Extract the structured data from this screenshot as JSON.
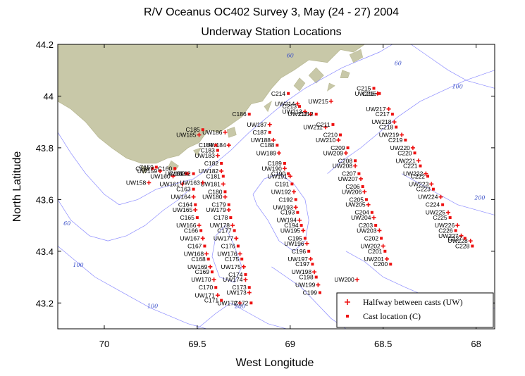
{
  "chart_data": {
    "type": "scatter",
    "title": "R/V Oceanus OC402 Survey 3, May (24 - 27) 2004",
    "subtitle": "Underway Station Locations",
    "xlabel": "West Longitude",
    "ylabel": "North Latitude",
    "xlim": [
      70.25,
      67.9
    ],
    "ylim": [
      43.1,
      44.2
    ],
    "x_reversed": true,
    "xticks": [
      70,
      69.5,
      69,
      68.5,
      68
    ],
    "yticks": [
      43.2,
      43.4,
      43.6,
      43.8,
      44,
      44.2
    ],
    "land_color": "#c8c8a8",
    "contour_color": "#8c8cff",
    "marker_color": "#ee1111",
    "contour_labels": [
      {
        "text": "60",
        "lon": 69.0,
        "lat": 44.15
      },
      {
        "text": "60",
        "lon": 68.42,
        "lat": 44.12
      },
      {
        "text": "100",
        "lon": 68.1,
        "lat": 44.03
      },
      {
        "text": "60",
        "lon": 70.2,
        "lat": 43.5
      },
      {
        "text": "100",
        "lon": 70.14,
        "lat": 43.34
      },
      {
        "text": "100",
        "lon": 69.74,
        "lat": 43.18
      },
      {
        "text": "200",
        "lon": 69.27,
        "lat": 43.18
      },
      {
        "text": "200",
        "lon": 67.98,
        "lat": 43.6
      }
    ],
    "legend": {
      "items": [
        {
          "marker": "+",
          "label": "Halfway between casts (UW)"
        },
        {
          "marker": "■",
          "label": "Cast location (C)"
        }
      ]
    },
    "series": [
      {
        "name": "Halfway between casts (UW)",
        "marker": "plus",
        "points": [
          {
            "label": "UW158",
            "lon": 69.76,
            "lat": 43.665
          },
          {
            "label": "UW159",
            "lon": 69.7,
            "lat": 43.71
          },
          {
            "label": "UW160",
            "lon": 69.63,
            "lat": 43.69
          },
          {
            "label": "UW161",
            "lon": 69.58,
            "lat": 43.66
          },
          {
            "label": "UW162",
            "lon": 69.55,
            "lat": 43.7
          },
          {
            "label": "UW163",
            "lon": 69.47,
            "lat": 43.665
          },
          {
            "label": "UW164",
            "lon": 69.52,
            "lat": 43.61
          },
          {
            "label": "UW165",
            "lon": 69.51,
            "lat": 43.56
          },
          {
            "label": "UW166",
            "lon": 69.49,
            "lat": 43.5
          },
          {
            "label": "UW167",
            "lon": 69.47,
            "lat": 43.45
          },
          {
            "label": "UW168",
            "lon": 69.45,
            "lat": 43.39
          },
          {
            "label": "UW169",
            "lon": 69.43,
            "lat": 43.34
          },
          {
            "label": "UW170",
            "lon": 69.41,
            "lat": 43.29
          },
          {
            "label": "UW171",
            "lon": 69.39,
            "lat": 43.23
          },
          {
            "label": "UW172",
            "lon": 69.27,
            "lat": 43.2
          },
          {
            "label": "UW173",
            "lon": 69.22,
            "lat": 43.24
          },
          {
            "label": "UW174",
            "lon": 69.24,
            "lat": 43.29
          },
          {
            "label": "UW175",
            "lon": 69.25,
            "lat": 43.34
          },
          {
            "label": "UW176",
            "lon": 69.27,
            "lat": 43.39
          },
          {
            "label": "UW177",
            "lon": 69.29,
            "lat": 43.45
          },
          {
            "label": "UW178",
            "lon": 69.31,
            "lat": 43.5
          },
          {
            "label": "UW179",
            "lon": 69.33,
            "lat": 43.56
          },
          {
            "label": "UW180",
            "lon": 69.35,
            "lat": 43.61
          },
          {
            "label": "UW181",
            "lon": 69.36,
            "lat": 43.66
          },
          {
            "label": "UW182",
            "lon": 69.37,
            "lat": 43.71
          },
          {
            "label": "UW183",
            "lon": 69.39,
            "lat": 43.77
          },
          {
            "label": "UW184",
            "lon": 69.33,
            "lat": 43.81
          },
          {
            "label": "UW185",
            "lon": 69.49,
            "lat": 43.85
          },
          {
            "label": "UW186",
            "lon": 69.35,
            "lat": 43.86
          },
          {
            "label": "UW187",
            "lon": 69.11,
            "lat": 43.89
          },
          {
            "label": "UW188",
            "lon": 69.09,
            "lat": 43.83
          },
          {
            "label": "UW189",
            "lon": 69.06,
            "lat": 43.78
          },
          {
            "label": "UW190",
            "lon": 69.03,
            "lat": 43.72
          },
          {
            "label": "UW191",
            "lon": 69.0,
            "lat": 43.69
          },
          {
            "label": "UW192",
            "lon": 68.98,
            "lat": 43.63
          },
          {
            "label": "UW193",
            "lon": 68.97,
            "lat": 43.57
          },
          {
            "label": "UW194",
            "lon": 68.95,
            "lat": 43.52
          },
          {
            "label": "UW195",
            "lon": 68.93,
            "lat": 43.48
          },
          {
            "label": "UW196",
            "lon": 68.91,
            "lat": 43.43
          },
          {
            "label": "UW197",
            "lon": 68.89,
            "lat": 43.37
          },
          {
            "label": "UW198",
            "lon": 68.87,
            "lat": 43.32
          },
          {
            "label": "UW199",
            "lon": 68.85,
            "lat": 43.27
          },
          {
            "label": "UW200",
            "lon": 68.64,
            "lat": 43.29
          },
          {
            "label": "UW201",
            "lon": 68.48,
            "lat": 43.37
          },
          {
            "label": "UW202",
            "lon": 68.5,
            "lat": 43.42
          },
          {
            "label": "UW203",
            "lon": 68.52,
            "lat": 43.48
          },
          {
            "label": "UW204",
            "lon": 68.55,
            "lat": 43.53
          },
          {
            "label": "UW205",
            "lon": 68.58,
            "lat": 43.58
          },
          {
            "label": "UW206",
            "lon": 68.6,
            "lat": 43.63
          },
          {
            "label": "UW207",
            "lon": 68.62,
            "lat": 43.68
          },
          {
            "label": "UW208",
            "lon": 68.65,
            "lat": 43.73
          },
          {
            "label": "UW209",
            "lon": 68.7,
            "lat": 43.78
          },
          {
            "label": "UW210",
            "lon": 68.74,
            "lat": 43.83
          },
          {
            "label": "UW211",
            "lon": 68.81,
            "lat": 43.88
          },
          {
            "label": "UW212",
            "lon": 68.89,
            "lat": 43.93
          },
          {
            "label": "UW213",
            "lon": 68.92,
            "lat": 43.94
          },
          {
            "label": "UW214",
            "lon": 68.96,
            "lat": 43.97
          },
          {
            "label": "UW215",
            "lon": 68.78,
            "lat": 43.98
          },
          {
            "label": "UW216",
            "lon": 68.53,
            "lat": 44.01
          },
          {
            "label": "UW217",
            "lon": 68.47,
            "lat": 43.95
          },
          {
            "label": "UW218",
            "lon": 68.44,
            "lat": 43.9
          },
          {
            "label": "UW219",
            "lon": 68.4,
            "lat": 43.85
          },
          {
            "label": "UW220",
            "lon": 68.34,
            "lat": 43.8
          },
          {
            "label": "UW221",
            "lon": 68.31,
            "lat": 43.75
          },
          {
            "label": "UW222",
            "lon": 68.27,
            "lat": 43.7
          },
          {
            "label": "UW223",
            "lon": 68.24,
            "lat": 43.66
          },
          {
            "label": "UW224",
            "lon": 68.19,
            "lat": 43.61
          },
          {
            "label": "UW225",
            "lon": 68.15,
            "lat": 43.55
          },
          {
            "label": "UW226",
            "lon": 68.1,
            "lat": 43.5
          },
          {
            "label": "UW227",
            "lon": 68.08,
            "lat": 43.46
          },
          {
            "label": "UW228",
            "lon": 68.03,
            "lat": 43.44
          }
        ]
      },
      {
        "name": "Cast location (C)",
        "marker": "square",
        "points": [
          {
            "label": "C158",
            "lon": 69.74,
            "lat": 43.72
          },
          {
            "label": "C159",
            "lon": 69.72,
            "lat": 43.725
          },
          {
            "label": "C160",
            "lon": 69.62,
            "lat": 43.72
          },
          {
            "label": "C161",
            "lon": 69.56,
            "lat": 43.7
          },
          {
            "label": "C162",
            "lon": 69.52,
            "lat": 43.7
          },
          {
            "label": "C163",
            "lon": 69.52,
            "lat": 43.64
          },
          {
            "label": "C164",
            "lon": 69.51,
            "lat": 43.58
          },
          {
            "label": "C165",
            "lon": 69.5,
            "lat": 43.53
          },
          {
            "label": "C166",
            "lon": 69.48,
            "lat": 43.48
          },
          {
            "label": "C167",
            "lon": 69.46,
            "lat": 43.42
          },
          {
            "label": "C168",
            "lon": 69.44,
            "lat": 43.37
          },
          {
            "label": "C169",
            "lon": 69.42,
            "lat": 43.32
          },
          {
            "label": "C170",
            "lon": 69.4,
            "lat": 43.26
          },
          {
            "label": "C171",
            "lon": 69.37,
            "lat": 43.21
          },
          {
            "label": "C172",
            "lon": 69.21,
            "lat": 43.2
          },
          {
            "label": "C173",
            "lon": 69.22,
            "lat": 43.26
          },
          {
            "label": "C174",
            "lon": 69.24,
            "lat": 43.31
          },
          {
            "label": "C175",
            "lon": 69.26,
            "lat": 43.37
          },
          {
            "label": "C176",
            "lon": 69.28,
            "lat": 43.42
          },
          {
            "label": "C177",
            "lon": 69.3,
            "lat": 43.48
          },
          {
            "label": "C178",
            "lon": 69.32,
            "lat": 43.53
          },
          {
            "label": "C179",
            "lon": 69.33,
            "lat": 43.58
          },
          {
            "label": "C180",
            "lon": 69.35,
            "lat": 43.63
          },
          {
            "label": "C181",
            "lon": 69.36,
            "lat": 43.69
          },
          {
            "label": "C182",
            "lon": 69.37,
            "lat": 43.74
          },
          {
            "label": "C183",
            "lon": 69.39,
            "lat": 43.79
          },
          {
            "label": "C184",
            "lon": 69.4,
            "lat": 43.81
          },
          {
            "label": "C185",
            "lon": 69.47,
            "lat": 43.87
          },
          {
            "label": "C186",
            "lon": 69.22,
            "lat": 43.93
          },
          {
            "label": "C187",
            "lon": 69.11,
            "lat": 43.86
          },
          {
            "label": "C188",
            "lon": 69.07,
            "lat": 43.81
          },
          {
            "label": "C189",
            "lon": 69.03,
            "lat": 43.74
          },
          {
            "label": "C190",
            "lon": 69.01,
            "lat": 43.7
          },
          {
            "label": "C191",
            "lon": 68.99,
            "lat": 43.66
          },
          {
            "label": "C192",
            "lon": 68.97,
            "lat": 43.6
          },
          {
            "label": "C193",
            "lon": 68.96,
            "lat": 43.55
          },
          {
            "label": "C194",
            "lon": 68.94,
            "lat": 43.5
          },
          {
            "label": "C195",
            "lon": 68.92,
            "lat": 43.45
          },
          {
            "label": "C196",
            "lon": 68.9,
            "lat": 43.4
          },
          {
            "label": "C197",
            "lon": 68.88,
            "lat": 43.35
          },
          {
            "label": "C198",
            "lon": 68.86,
            "lat": 43.3
          },
          {
            "label": "C199",
            "lon": 68.84,
            "lat": 43.24
          },
          {
            "label": "C200",
            "lon": 68.46,
            "lat": 43.35
          },
          {
            "label": "C201",
            "lon": 68.49,
            "lat": 43.4
          },
          {
            "label": "C202",
            "lon": 68.51,
            "lat": 43.45
          },
          {
            "label": "C203",
            "lon": 68.54,
            "lat": 43.5
          },
          {
            "label": "C204",
            "lon": 68.56,
            "lat": 43.55
          },
          {
            "label": "C205",
            "lon": 68.59,
            "lat": 43.6
          },
          {
            "label": "C206",
            "lon": 68.61,
            "lat": 43.65
          },
          {
            "label": "C207",
            "lon": 68.63,
            "lat": 43.7
          },
          {
            "label": "C208",
            "lon": 68.65,
            "lat": 43.75
          },
          {
            "label": "C209",
            "lon": 68.69,
            "lat": 43.8
          },
          {
            "label": "C210",
            "lon": 68.73,
            "lat": 43.85
          },
          {
            "label": "C211",
            "lon": 68.77,
            "lat": 43.89
          },
          {
            "label": "C212",
            "lon": 68.86,
            "lat": 43.93
          },
          {
            "label": "C213",
            "lon": 68.95,
            "lat": 43.96
          },
          {
            "label": "C214",
            "lon": 69.01,
            "lat": 44.01
          },
          {
            "label": "C215",
            "lon": 68.55,
            "lat": 44.03
          },
          {
            "label": "C216",
            "lon": 68.52,
            "lat": 44.01
          },
          {
            "label": "C217",
            "lon": 68.45,
            "lat": 43.93
          },
          {
            "label": "C218",
            "lon": 68.43,
            "lat": 43.88
          },
          {
            "label": "C219",
            "lon": 68.38,
            "lat": 43.83
          },
          {
            "label": "C220",
            "lon": 68.33,
            "lat": 43.78
          },
          {
            "label": "C221",
            "lon": 68.3,
            "lat": 43.73
          },
          {
            "label": "C222",
            "lon": 68.26,
            "lat": 43.69
          },
          {
            "label": "C223",
            "lon": 68.23,
            "lat": 43.64
          },
          {
            "label": "C224",
            "lon": 68.18,
            "lat": 43.58
          },
          {
            "label": "C225",
            "lon": 68.14,
            "lat": 43.53
          },
          {
            "label": "C226",
            "lon": 68.11,
            "lat": 43.48
          },
          {
            "label": "C227",
            "lon": 68.06,
            "lat": 43.45
          },
          {
            "label": "C228",
            "lon": 68.02,
            "lat": 43.42
          }
        ]
      }
    ]
  }
}
